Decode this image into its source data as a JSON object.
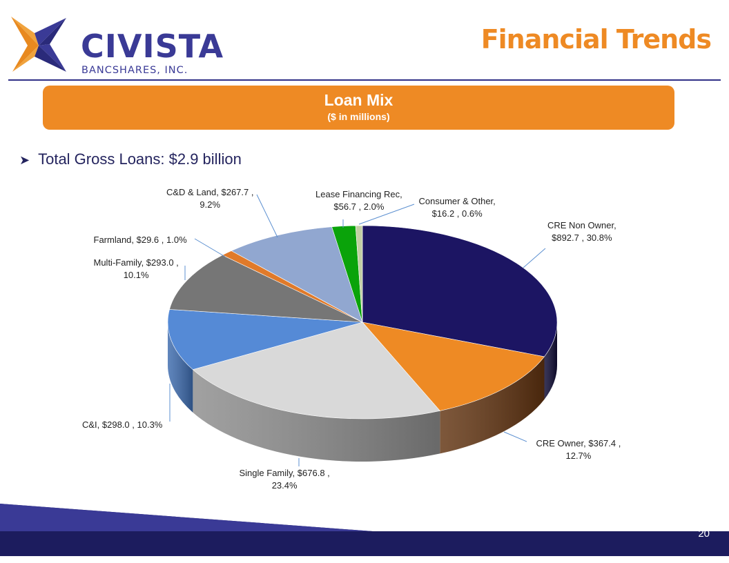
{
  "header": {
    "logo_name": "CIVISTA",
    "logo_sub": "BANCSHARES, INC.",
    "page_title": "Financial Trends"
  },
  "banner": {
    "title": "Loan Mix",
    "subtitle": "($ in millions)"
  },
  "summary": {
    "bullet_icon": "arrow-bullet-icon",
    "text": "Total Gross Loans: $2.9 billion"
  },
  "colors": {
    "brand_navy": "#2e2e86",
    "accent_orange": "#ee8a24"
  },
  "chart_data": {
    "type": "pie",
    "style": "3d",
    "title": "Loan Mix",
    "units": "$ in millions",
    "slices": [
      {
        "name": "CRE Non Owner",
        "value": 892.7,
        "percent": 30.8,
        "color": "#1c1563",
        "side": "#0e0a33",
        "line1": "CRE Non Owner,",
        "line2": "$892.7 , 30.8%"
      },
      {
        "name": "CRE Owner",
        "value": 367.4,
        "percent": 12.7,
        "color": "#ee8a24",
        "side": "#613310",
        "line1": "CRE Owner, $367.4 ,",
        "line2": "12.7%"
      },
      {
        "name": "Single Family",
        "value": 676.8,
        "percent": 23.4,
        "color": "#d9d9d9",
        "side": "#8c8c8c",
        "line1": "Single Family, $676.8 ,",
        "line2": "23.4%"
      },
      {
        "name": "C&I",
        "value": 298.0,
        "percent": 10.3,
        "color": "#558ad6",
        "side": "#3d6bae",
        "line1": "C&I, $298.0 , 10.3%",
        "line2": ""
      },
      {
        "name": "Multi-Family",
        "value": 293.0,
        "percent": 10.1,
        "color": "#767676",
        "side": "#505050",
        "line1": "Multi-Family, $293.0 ,",
        "line2": "10.1%"
      },
      {
        "name": "Farmland",
        "value": 29.6,
        "percent": 1.0,
        "color": "#e07a2a",
        "side": "#9a521b",
        "line1": "Farmland, $29.6 , 1.0%",
        "line2": ""
      },
      {
        "name": "C&D & Land",
        "value": 267.7,
        "percent": 9.2,
        "color": "#91a7d0",
        "side": "#6c82aa",
        "line1": "C&D & Land, $267.7 ,",
        "line2": "9.2%"
      },
      {
        "name": "Lease Financing Rec",
        "value": 56.7,
        "percent": 2.0,
        "color": "#0aa30a",
        "side": "#076b07",
        "line1": "Lease Financing Rec,",
        "line2": "$56.7 , 2.0%"
      },
      {
        "name": "Consumer & Other",
        "value": 16.2,
        "percent": 0.6,
        "color": "#c3cfa4",
        "side": "#8e9874",
        "line1": "Consumer & Other,",
        "line2": "$16.2 , 0.6%"
      }
    ]
  },
  "footer": {
    "page_number": "20"
  }
}
